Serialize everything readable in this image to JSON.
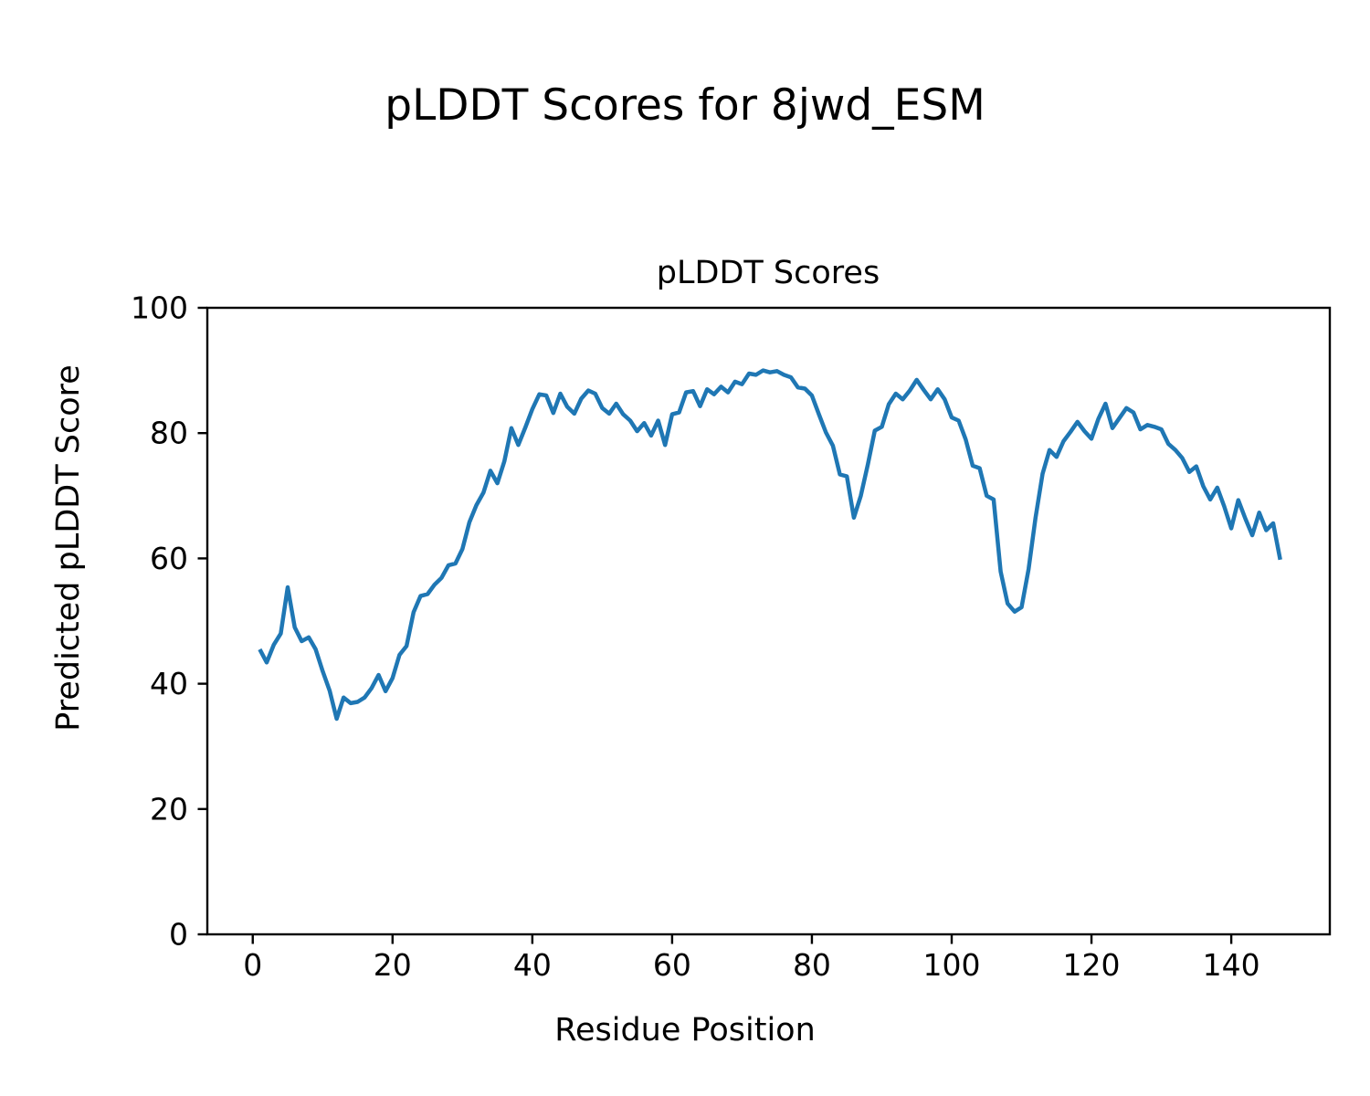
{
  "figure": {
    "suptitle": "pLDDT Scores for 8jwd_ESM"
  },
  "chart_data": {
    "type": "line",
    "title": "pLDDT Scores",
    "xlabel": "Residue Position",
    "ylabel": "Predicted pLDDT Score",
    "xlim": [
      -6.5,
      154.1
    ],
    "ylim": [
      0,
      100
    ],
    "xticks": [
      0,
      20,
      40,
      60,
      80,
      100,
      120,
      140
    ],
    "yticks": [
      0,
      20,
      40,
      60,
      80,
      100
    ],
    "grid": false,
    "legend": null,
    "line_color": "#1f77b4",
    "axis_color": "#000000",
    "series": [
      {
        "name": "pLDDT",
        "x_start": 1,
        "values": [
          45.5,
          43.4,
          46.2,
          48.0,
          55.4,
          49.0,
          46.8,
          47.4,
          45.5,
          42.0,
          38.9,
          34.4,
          37.8,
          36.9,
          37.1,
          37.8,
          39.3,
          41.4,
          38.8,
          40.9,
          44.6,
          46.0,
          51.4,
          54.0,
          54.3,
          55.8,
          56.9,
          58.9,
          59.2,
          61.5,
          65.8,
          68.5,
          70.5,
          74.0,
          72.0,
          75.5,
          80.8,
          78.1,
          80.9,
          83.8,
          86.2,
          86.0,
          83.2,
          86.3,
          84.2,
          83.1,
          85.5,
          86.8,
          86.3,
          84.0,
          83.1,
          84.7,
          83.0,
          82.0,
          80.3,
          81.6,
          79.6,
          82.0,
          78.1,
          83.0,
          83.3,
          86.5,
          86.7,
          84.3,
          87.0,
          86.2,
          87.4,
          86.5,
          88.2,
          87.8,
          89.5,
          89.3,
          90.0,
          89.7,
          89.9,
          89.3,
          88.9,
          87.3,
          87.1,
          86.0,
          83.0,
          80.1,
          78.0,
          73.4,
          73.1,
          66.5,
          70.0,
          75.0,
          80.4,
          81.0,
          84.6,
          86.3,
          85.4,
          86.8,
          88.5,
          86.9,
          85.4,
          87.0,
          85.4,
          82.5,
          82.0,
          79.0,
          74.8,
          74.4,
          70.0,
          69.4,
          57.9,
          52.8,
          51.5,
          52.2,
          58.3,
          66.5,
          73.5,
          77.3,
          76.2,
          78.7,
          80.2,
          81.8,
          80.3,
          79.1,
          82.3,
          84.7,
          80.8,
          82.4,
          84.0,
          83.3,
          80.6,
          81.3,
          81.0,
          80.6,
          78.3,
          77.3,
          76.0,
          73.8,
          74.7,
          71.5,
          69.4,
          71.3,
          68.3,
          64.8,
          69.3,
          66.4,
          63.7,
          67.3,
          64.5,
          65.6,
          59.8
        ]
      }
    ]
  }
}
